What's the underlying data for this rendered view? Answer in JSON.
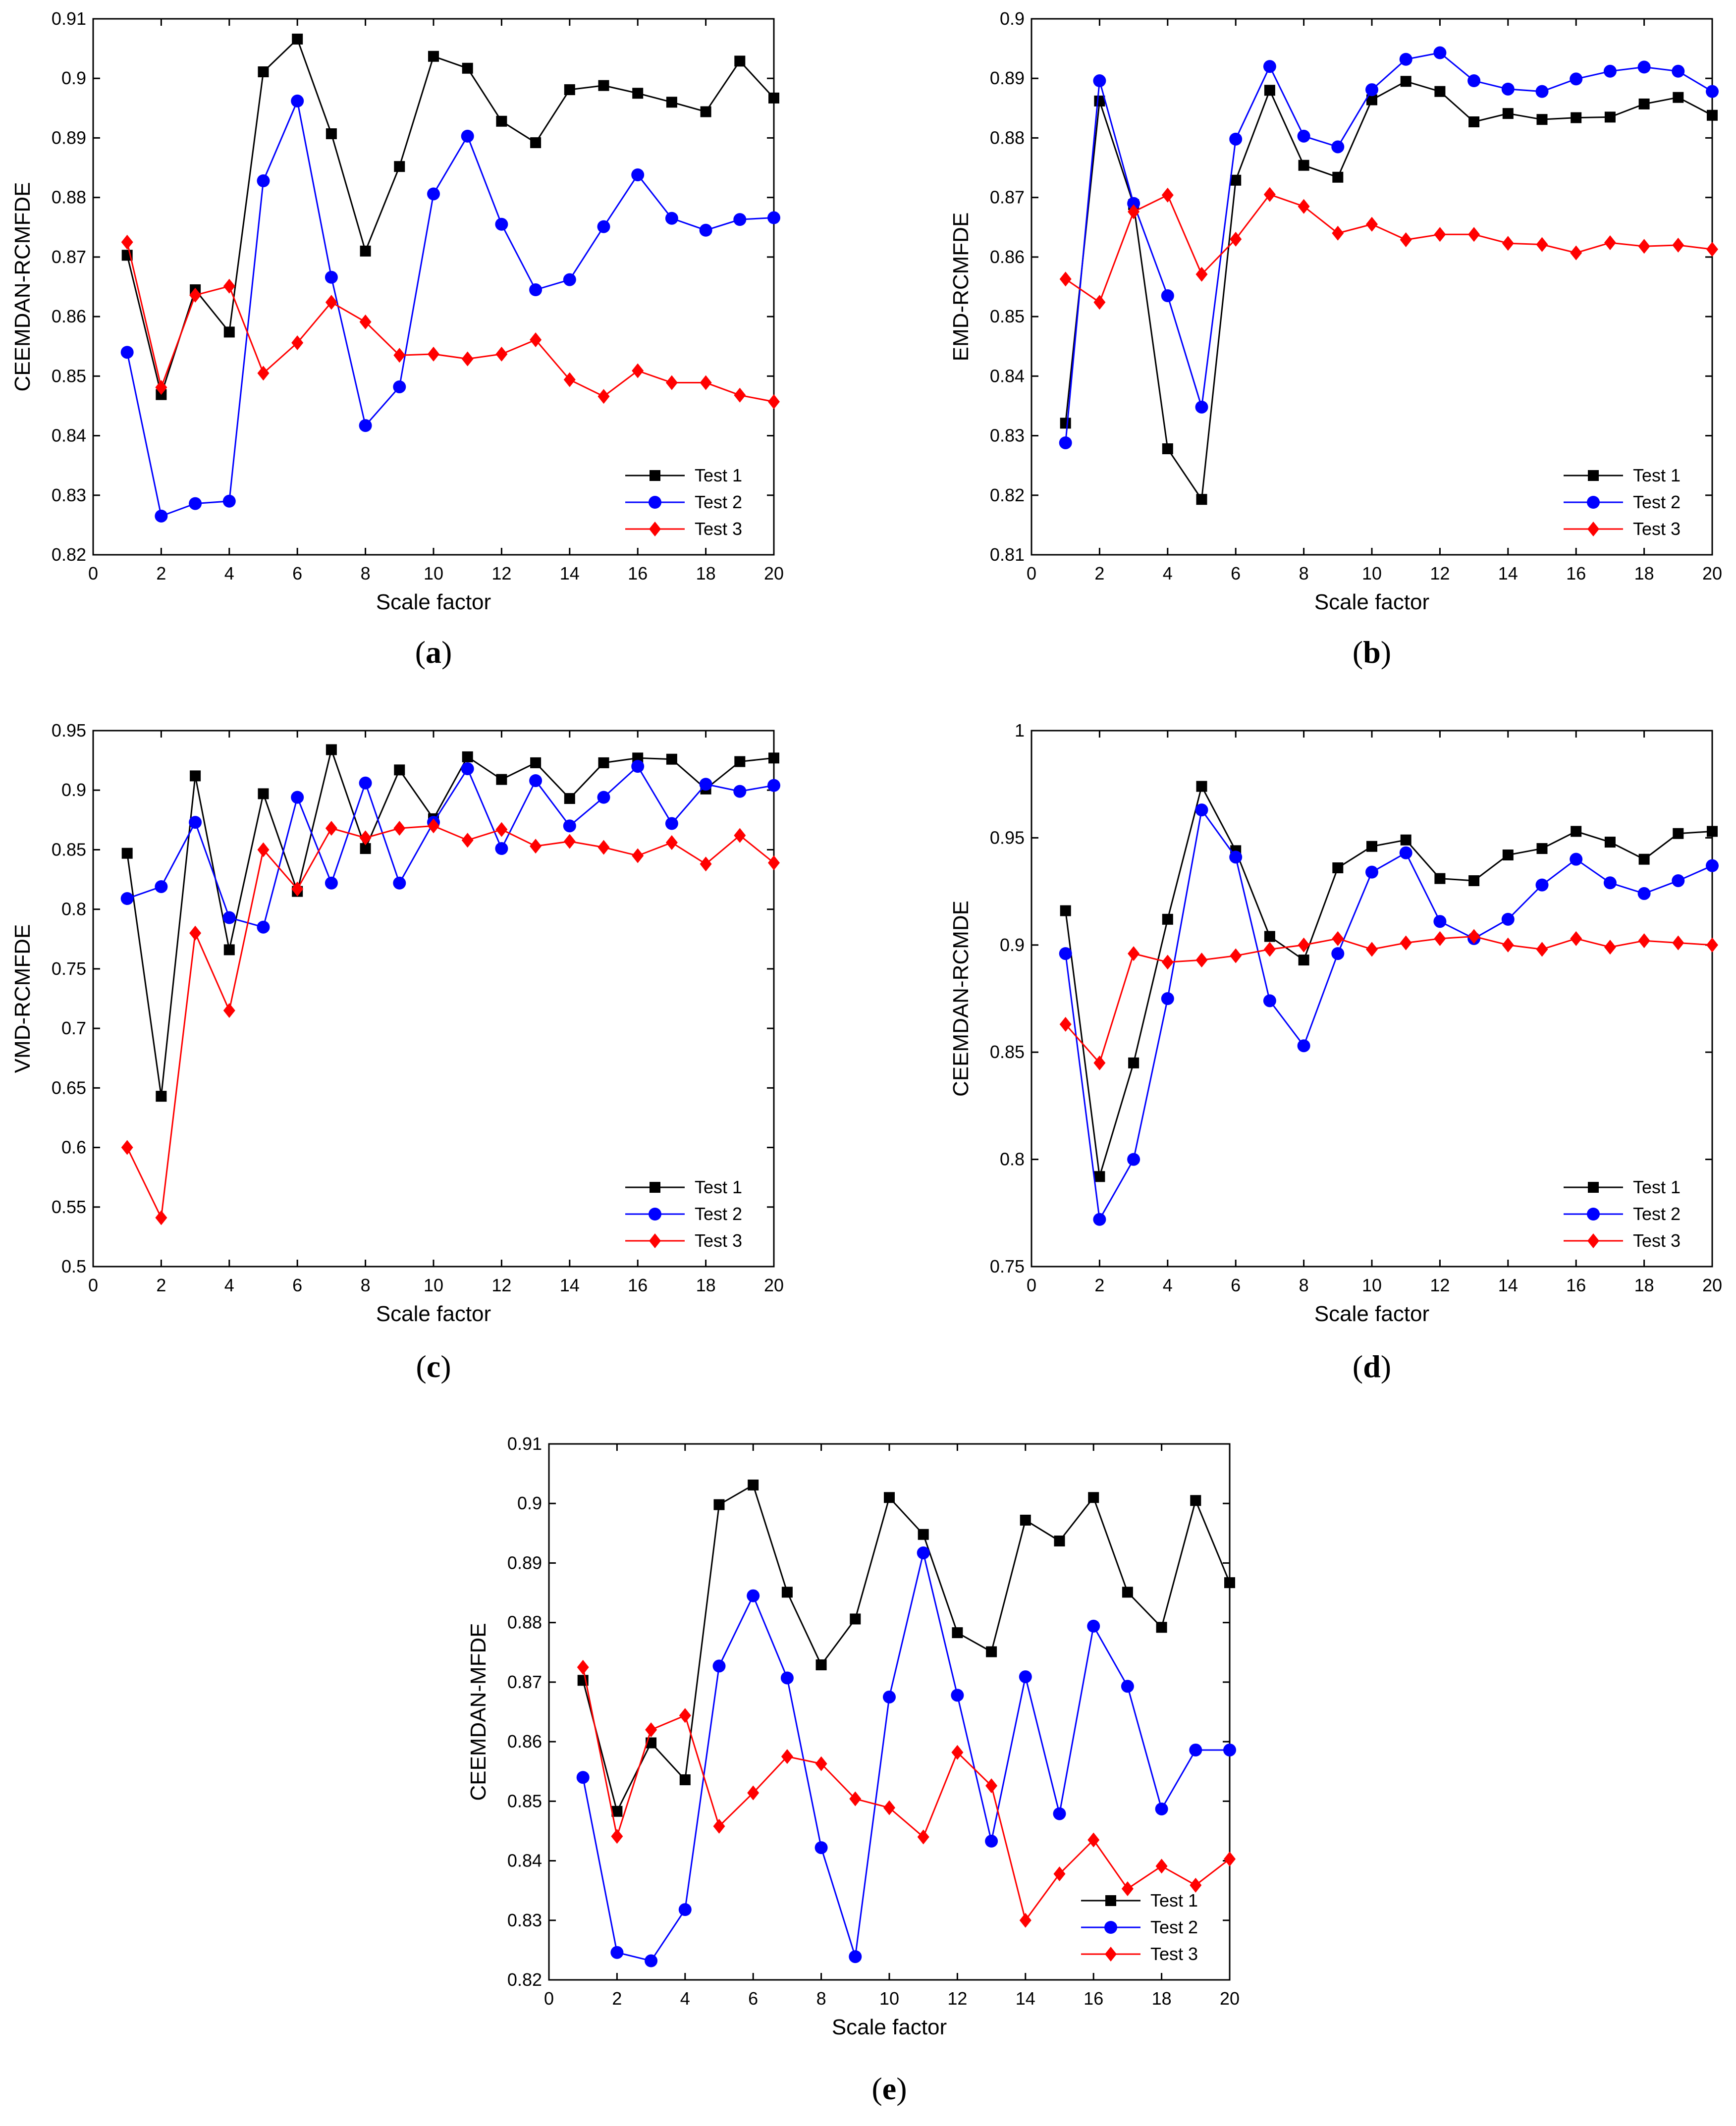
{
  "colors": {
    "Test 1": "#000000",
    "Test 2": "#0000ff",
    "Test 3": "#ff0000"
  },
  "chart_data": [
    {
      "type": "line",
      "caption": "a",
      "xlabel": "Scale factor",
      "ylabel": "CEEMDAN-RCMFDE",
      "xlim": [
        0,
        20
      ],
      "ylim": [
        0.82,
        0.91
      ],
      "xticks": [
        0,
        2,
        4,
        6,
        8,
        10,
        12,
        14,
        16,
        18,
        20
      ],
      "yticks": [
        0.82,
        0.83,
        0.84,
        0.85,
        0.86,
        0.87,
        0.88,
        0.89,
        0.9,
        0.91
      ],
      "ytick_labels": [
        "0.82",
        "0.83",
        "0.84",
        "0.85",
        "0.86",
        "0.87",
        "0.88",
        "0.89",
        "0.9",
        "0.91"
      ],
      "legend_position": "bottom-right",
      "x": [
        1,
        2,
        3,
        4,
        5,
        6,
        7,
        8,
        9,
        10,
        11,
        12,
        13,
        14,
        15,
        16,
        17,
        18,
        19,
        20
      ],
      "series": [
        {
          "name": "Test 1",
          "marker": "square",
          "values": [
            0.8703,
            0.8469,
            0.8645,
            0.8574,
            0.9011,
            0.9066,
            0.8907,
            0.871,
            0.8852,
            0.9037,
            0.9017,
            0.8928,
            0.8892,
            0.8981,
            0.8988,
            0.8975,
            0.896,
            0.8944,
            0.9029,
            0.8967
          ]
        },
        {
          "name": "Test 2",
          "marker": "circle",
          "values": [
            0.854,
            0.8265,
            0.8286,
            0.829,
            0.8828,
            0.8962,
            0.8666,
            0.8417,
            0.8482,
            0.8806,
            0.8903,
            0.8755,
            0.8645,
            0.8662,
            0.8751,
            0.8838,
            0.8765,
            0.8745,
            0.8763,
            0.8766
          ]
        },
        {
          "name": "Test 3",
          "marker": "diamond",
          "values": [
            0.8725,
            0.8481,
            0.8636,
            0.8651,
            0.8505,
            0.8556,
            0.8624,
            0.8591,
            0.8535,
            0.8537,
            0.8529,
            0.8537,
            0.8561,
            0.8494,
            0.8466,
            0.8509,
            0.8489,
            0.8489,
            0.8468,
            0.8457
          ]
        }
      ]
    },
    {
      "type": "line",
      "caption": "b",
      "xlabel": "Scale factor",
      "ylabel": "EMD-RCMFDE",
      "xlim": [
        0,
        20
      ],
      "ylim": [
        0.81,
        0.9
      ],
      "xticks": [
        0,
        2,
        4,
        6,
        8,
        10,
        12,
        14,
        16,
        18,
        20
      ],
      "yticks": [
        0.81,
        0.82,
        0.83,
        0.84,
        0.85,
        0.86,
        0.87,
        0.88,
        0.89,
        0.9
      ],
      "ytick_labels": [
        "0.81",
        "0.82",
        "0.83",
        "0.84",
        "0.85",
        "0.86",
        "0.87",
        "0.88",
        "0.89",
        "0.9"
      ],
      "legend_position": "bottom-right",
      "x": [
        1,
        2,
        3,
        4,
        5,
        6,
        7,
        8,
        9,
        10,
        11,
        12,
        13,
        14,
        15,
        16,
        17,
        18,
        19,
        20
      ],
      "series": [
        {
          "name": "Test 1",
          "marker": "square",
          "values": [
            0.8321,
            0.8862,
            0.8688,
            0.8278,
            0.8193,
            0.8729,
            0.888,
            0.8754,
            0.8734,
            0.8864,
            0.8895,
            0.8878,
            0.8827,
            0.8841,
            0.8831,
            0.8834,
            0.8835,
            0.8857,
            0.8868,
            0.8838
          ]
        },
        {
          "name": "Test 2",
          "marker": "circle",
          "values": [
            0.8288,
            0.8896,
            0.869,
            0.8535,
            0.8348,
            0.8798,
            0.892,
            0.8803,
            0.8785,
            0.8881,
            0.8932,
            0.8943,
            0.8896,
            0.8882,
            0.8878,
            0.8899,
            0.8912,
            0.8919,
            0.8912,
            0.8878
          ]
        },
        {
          "name": "Test 3",
          "marker": "diamond",
          "values": [
            0.8563,
            0.8524,
            0.8676,
            0.8704,
            0.8571,
            0.863,
            0.8705,
            0.8685,
            0.864,
            0.8655,
            0.8629,
            0.8638,
            0.8638,
            0.8623,
            0.8621,
            0.8607,
            0.8624,
            0.8618,
            0.862,
            0.8613
          ]
        }
      ]
    },
    {
      "type": "line",
      "caption": "c",
      "xlabel": "Scale factor",
      "ylabel": "VMD-RCMFDE",
      "xlim": [
        0,
        20
      ],
      "ylim": [
        0.5,
        0.95
      ],
      "xticks": [
        0,
        2,
        4,
        6,
        8,
        10,
        12,
        14,
        16,
        18,
        20
      ],
      "yticks": [
        0.5,
        0.55,
        0.6,
        0.65,
        0.7,
        0.75,
        0.8,
        0.85,
        0.9,
        0.95
      ],
      "ytick_labels": [
        "0.5",
        "0.55",
        "0.6",
        "0.65",
        "0.7",
        "0.75",
        "0.8",
        "0.85",
        "0.9",
        "0.95"
      ],
      "legend_position": "bottom-right",
      "x": [
        1,
        2,
        3,
        4,
        5,
        6,
        7,
        8,
        9,
        10,
        11,
        12,
        13,
        14,
        15,
        16,
        17,
        18,
        19,
        20
      ],
      "series": [
        {
          "name": "Test 1",
          "marker": "square",
          "values": [
            0.847,
            0.643,
            0.912,
            0.766,
            0.897,
            0.815,
            0.934,
            0.851,
            0.917,
            0.876,
            0.928,
            0.909,
            0.923,
            0.893,
            0.923,
            0.927,
            0.926,
            0.901,
            0.924,
            0.927
          ]
        },
        {
          "name": "Test 2",
          "marker": "circle",
          "values": [
            0.809,
            0.819,
            0.873,
            0.793,
            0.785,
            0.894,
            0.822,
            0.906,
            0.822,
            0.873,
            0.918,
            0.851,
            0.908,
            0.87,
            0.894,
            0.92,
            0.872,
            0.905,
            0.899,
            0.904
          ]
        },
        {
          "name": "Test 3",
          "marker": "diamond",
          "values": [
            0.6,
            0.541,
            0.78,
            0.715,
            0.85,
            0.817,
            0.868,
            0.86,
            0.868,
            0.87,
            0.858,
            0.867,
            0.853,
            0.857,
            0.852,
            0.845,
            0.856,
            0.838,
            0.862,
            0.839
          ]
        }
      ]
    },
    {
      "type": "line",
      "caption": "d",
      "xlabel": "Scale factor",
      "ylabel": "CEEMDAN-RCMDE",
      "xlim": [
        0,
        20
      ],
      "ylim": [
        0.75,
        1.0
      ],
      "xticks": [
        0,
        2,
        4,
        6,
        8,
        10,
        12,
        14,
        16,
        18,
        20
      ],
      "yticks": [
        0.75,
        0.8,
        0.85,
        0.9,
        0.95,
        1.0
      ],
      "ytick_labels": [
        "0.75",
        "0.8",
        "0.85",
        "0.9",
        "0.95",
        "1"
      ],
      "legend_position": "bottom-right",
      "x": [
        1,
        2,
        3,
        4,
        5,
        6,
        7,
        8,
        9,
        10,
        11,
        12,
        13,
        14,
        15,
        16,
        17,
        18,
        19,
        20
      ],
      "series": [
        {
          "name": "Test 1",
          "marker": "square",
          "values": [
            0.916,
            0.792,
            0.845,
            0.912,
            0.974,
            0.944,
            0.904,
            0.893,
            0.936,
            0.946,
            0.949,
            0.931,
            0.93,
            0.942,
            0.945,
            0.953,
            0.948,
            0.94,
            0.952,
            0.953
          ]
        },
        {
          "name": "Test 2",
          "marker": "circle",
          "values": [
            0.896,
            0.772,
            0.8,
            0.875,
            0.963,
            0.941,
            0.874,
            0.853,
            0.896,
            0.934,
            0.943,
            0.911,
            0.903,
            0.912,
            0.928,
            0.94,
            0.929,
            0.924,
            0.93,
            0.937
          ]
        },
        {
          "name": "Test 3",
          "marker": "diamond",
          "values": [
            0.863,
            0.845,
            0.896,
            0.892,
            0.893,
            0.895,
            0.898,
            0.9,
            0.903,
            0.898,
            0.901,
            0.903,
            0.904,
            0.9,
            0.898,
            0.903,
            0.899,
            0.902,
            0.901,
            0.9
          ]
        }
      ]
    },
    {
      "type": "line",
      "caption": "e",
      "xlabel": "Scale factor",
      "ylabel": "CEEMDAN-MFDE",
      "xlim": [
        0,
        20
      ],
      "ylim": [
        0.82,
        0.91
      ],
      "xticks": [
        0,
        2,
        4,
        6,
        8,
        10,
        12,
        14,
        16,
        18,
        20
      ],
      "yticks": [
        0.82,
        0.83,
        0.84,
        0.85,
        0.86,
        0.87,
        0.88,
        0.89,
        0.9,
        0.91
      ],
      "ytick_labels": [
        "0.82",
        "0.83",
        "0.84",
        "0.85",
        "0.86",
        "0.87",
        "0.88",
        "0.89",
        "0.9",
        "0.91"
      ],
      "legend_position": "bottom-right",
      "x": [
        1,
        2,
        3,
        4,
        5,
        6,
        7,
        8,
        9,
        10,
        11,
        12,
        13,
        14,
        15,
        16,
        17,
        18,
        19,
        20
      ],
      "series": [
        {
          "name": "Test 1",
          "marker": "square",
          "values": [
            0.8703,
            0.8483,
            0.8598,
            0.8536,
            0.8998,
            0.9031,
            0.8851,
            0.8729,
            0.8806,
            0.901,
            0.8948,
            0.8783,
            0.8751,
            0.8972,
            0.8937,
            0.901,
            0.8851,
            0.8792,
            0.9005,
            0.8867
          ]
        },
        {
          "name": "Test 2",
          "marker": "circle",
          "values": [
            0.854,
            0.8246,
            0.8232,
            0.8318,
            0.8727,
            0.8845,
            0.8707,
            0.8422,
            0.8239,
            0.8675,
            0.8917,
            0.8678,
            0.8433,
            0.8709,
            0.8479,
            0.8794,
            0.8693,
            0.8487,
            0.8586,
            0.8586
          ]
        },
        {
          "name": "Test 3",
          "marker": "diamond",
          "values": [
            0.8725,
            0.8441,
            0.862,
            0.8644,
            0.8458,
            0.8514,
            0.8575,
            0.8563,
            0.8504,
            0.8489,
            0.844,
            0.8582,
            0.8526,
            0.83,
            0.8378,
            0.8435,
            0.8353,
            0.8391,
            0.8359,
            0.8403
          ]
        }
      ]
    }
  ]
}
